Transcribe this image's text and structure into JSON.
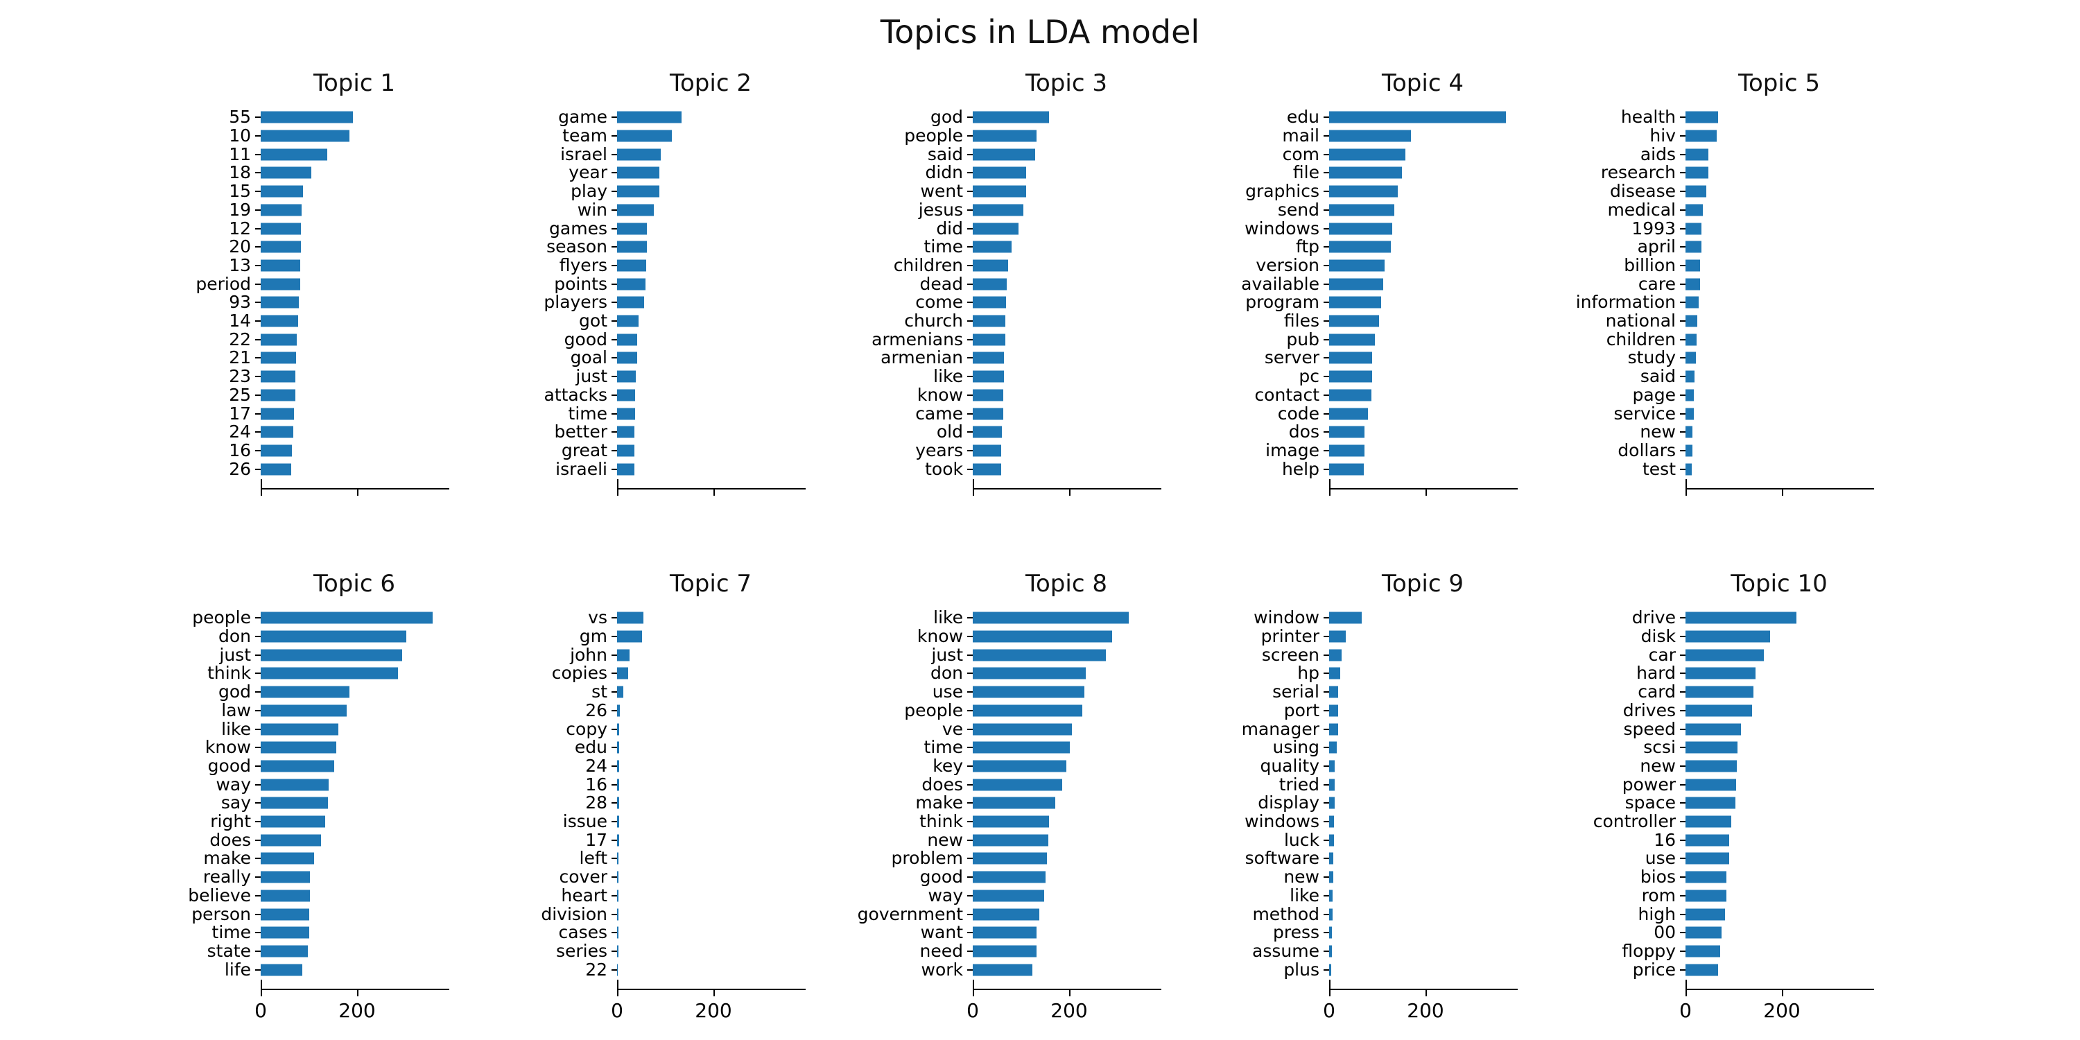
{
  "figure": {
    "title": "Topics in LDA model"
  },
  "axis": {
    "xtick_labels": [
      "0",
      "200"
    ],
    "xtick_values": [
      0,
      200
    ],
    "xlim": [
      0,
      387
    ],
    "bar_color": "#1f77b4",
    "spine_color": "#000000",
    "tick_labels_shown_on": "bottom-row-only",
    "grid": "off"
  },
  "layout": {
    "rows": 2,
    "cols": 5,
    "orientation": "horizontal-bars"
  },
  "chart_data": [
    {
      "type": "bar",
      "orientation": "horizontal",
      "title": "Topic 1",
      "categories": [
        "55",
        "10",
        "11",
        "18",
        "15",
        "19",
        "12",
        "20",
        "13",
        "period",
        "93",
        "14",
        "22",
        "21",
        "23",
        "25",
        "17",
        "24",
        "16",
        "26"
      ],
      "values": [
        191,
        183,
        137,
        104,
        88,
        85,
        83,
        83,
        82,
        81,
        79,
        77,
        75,
        73,
        72,
        71,
        69,
        68,
        65,
        63
      ],
      "xlim": [
        0,
        387
      ]
    },
    {
      "type": "bar",
      "orientation": "horizontal",
      "title": "Topic 2",
      "categories": [
        "game",
        "team",
        "israel",
        "year",
        "play",
        "win",
        "games",
        "season",
        "flyers",
        "points",
        "players",
        "got",
        "good",
        "goal",
        "just",
        "attacks",
        "time",
        "better",
        "great",
        "israeli"
      ],
      "values": [
        134,
        113,
        90,
        88,
        87,
        76,
        62,
        61,
        60,
        59,
        56,
        45,
        42,
        41,
        38,
        37,
        37,
        36,
        36,
        36
      ],
      "xlim": [
        0,
        387
      ]
    },
    {
      "type": "bar",
      "orientation": "horizontal",
      "title": "Topic 3",
      "categories": [
        "god",
        "people",
        "said",
        "didn",
        "went",
        "jesus",
        "did",
        "time",
        "children",
        "dead",
        "come",
        "church",
        "armenians",
        "armenian",
        "like",
        "know",
        "came",
        "old",
        "years",
        "took"
      ],
      "values": [
        158,
        132,
        129,
        111,
        110,
        105,
        95,
        80,
        73,
        70,
        69,
        67,
        67,
        65,
        65,
        63,
        63,
        60,
        59,
        59
      ],
      "xlim": [
        0,
        387
      ]
    },
    {
      "type": "bar",
      "orientation": "horizontal",
      "title": "Topic 4",
      "categories": [
        "edu",
        "mail",
        "com",
        "file",
        "graphics",
        "send",
        "windows",
        "ftp",
        "version",
        "available",
        "program",
        "files",
        "pub",
        "server",
        "pc",
        "contact",
        "code",
        "dos",
        "image",
        "help"
      ],
      "values": [
        366,
        169,
        157,
        150,
        142,
        135,
        131,
        128,
        114,
        112,
        107,
        103,
        94,
        89,
        89,
        87,
        80,
        73,
        73,
        71
      ],
      "xlim": [
        0,
        387
      ]
    },
    {
      "type": "bar",
      "orientation": "horizontal",
      "title": "Topic 5",
      "categories": [
        "health",
        "hiv",
        "aids",
        "research",
        "disease",
        "medical",
        "1993",
        "april",
        "billion",
        "care",
        "information",
        "national",
        "children",
        "study",
        "said",
        "page",
        "service",
        "new",
        "dollars",
        "test"
      ],
      "values": [
        68,
        65,
        48,
        47,
        43,
        36,
        33,
        33,
        30,
        30,
        27,
        25,
        23,
        22,
        19,
        17,
        17,
        14,
        14,
        13
      ],
      "xlim": [
        0,
        387
      ]
    },
    {
      "type": "bar",
      "orientation": "horizontal",
      "title": "Topic 6",
      "categories": [
        "people",
        "don",
        "just",
        "think",
        "god",
        "law",
        "like",
        "know",
        "good",
        "way",
        "say",
        "right",
        "does",
        "make",
        "really",
        "believe",
        "person",
        "time",
        "state",
        "life"
      ],
      "values": [
        355,
        301,
        292,
        284,
        184,
        178,
        160,
        156,
        152,
        140,
        139,
        133,
        124,
        111,
        102,
        102,
        100,
        100,
        97,
        86
      ],
      "xlim": [
        0,
        387
      ]
    },
    {
      "type": "bar",
      "orientation": "horizontal",
      "title": "Topic 7",
      "categories": [
        "vs",
        "gm",
        "john",
        "copies",
        "st",
        "26",
        "copy",
        "edu",
        "24",
        "16",
        "28",
        "issue",
        "17",
        "left",
        "cover",
        "heart",
        "division",
        "cases",
        "series",
        "22"
      ],
      "values": [
        55,
        52,
        26,
        23,
        13,
        6,
        5,
        5,
        5,
        4,
        4,
        4,
        4,
        3,
        3,
        3,
        3,
        3,
        3,
        2
      ],
      "xlim": [
        0,
        387
      ]
    },
    {
      "type": "bar",
      "orientation": "horizontal",
      "title": "Topic 8",
      "categories": [
        "like",
        "know",
        "just",
        "don",
        "use",
        "people",
        "ve",
        "time",
        "key",
        "does",
        "make",
        "think",
        "new",
        "problem",
        "good",
        "way",
        "government",
        "want",
        "need",
        "work"
      ],
      "values": [
        322,
        288,
        275,
        234,
        231,
        226,
        205,
        201,
        193,
        185,
        170,
        158,
        156,
        153,
        150,
        147,
        138,
        132,
        132,
        123
      ],
      "xlim": [
        0,
        387
      ]
    },
    {
      "type": "bar",
      "orientation": "horizontal",
      "title": "Topic 9",
      "categories": [
        "window",
        "printer",
        "screen",
        "hp",
        "serial",
        "port",
        "manager",
        "using",
        "quality",
        "tried",
        "display",
        "windows",
        "luck",
        "software",
        "new",
        "like",
        "method",
        "press",
        "assume",
        "plus"
      ],
      "values": [
        68,
        34,
        26,
        23,
        19,
        18,
        18,
        16,
        11,
        11,
        11,
        10,
        10,
        9,
        8,
        7,
        7,
        6,
        6,
        4
      ],
      "xlim": [
        0,
        387
      ]
    },
    {
      "type": "bar",
      "orientation": "horizontal",
      "title": "Topic 10",
      "categories": [
        "drive",
        "disk",
        "car",
        "hard",
        "card",
        "drives",
        "speed",
        "scsi",
        "new",
        "power",
        "space",
        "controller",
        "16",
        "use",
        "bios",
        "rom",
        "high",
        "00",
        "floppy",
        "price"
      ],
      "values": [
        230,
        175,
        162,
        145,
        141,
        138,
        114,
        108,
        106,
        105,
        103,
        95,
        91,
        90,
        85,
        85,
        82,
        74,
        71,
        67
      ],
      "xlim": [
        0,
        387
      ]
    }
  ]
}
